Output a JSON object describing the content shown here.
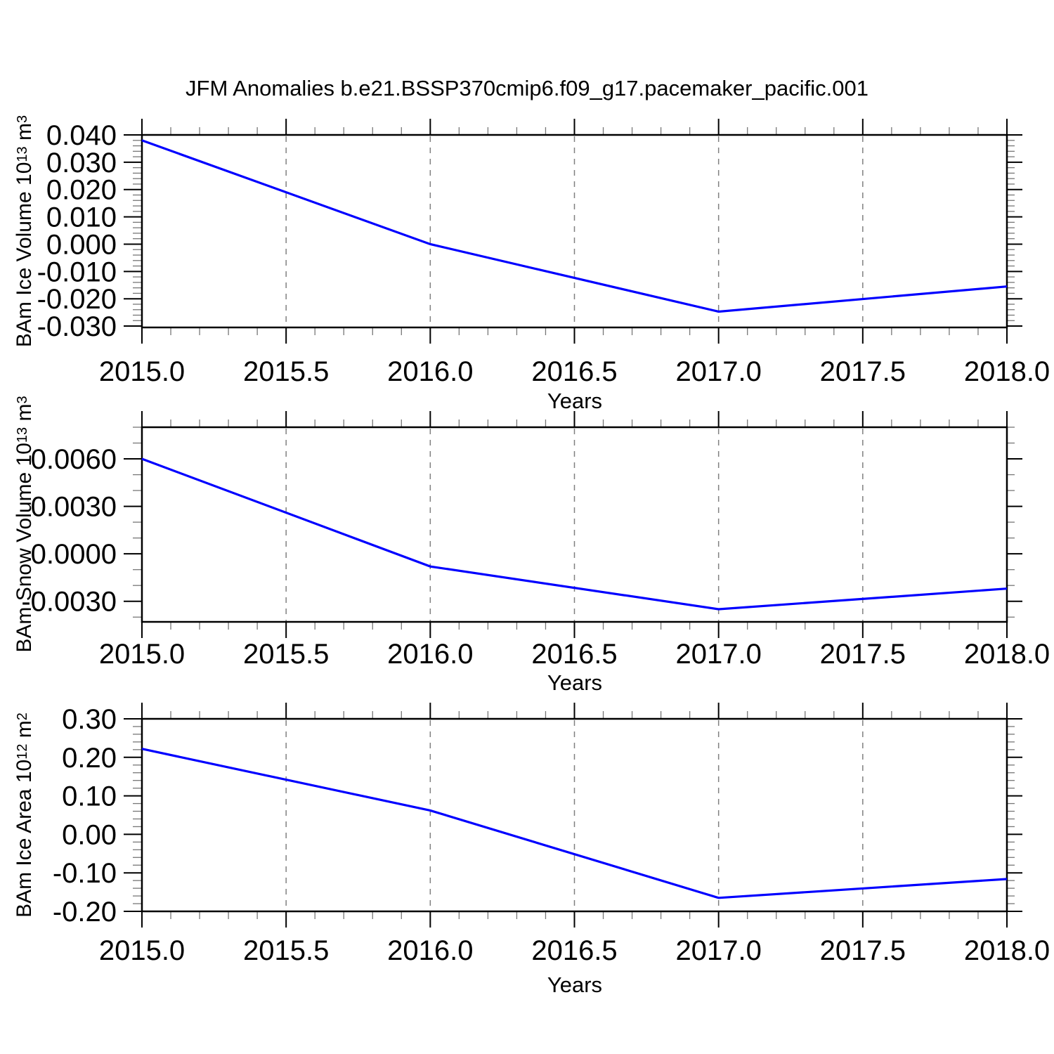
{
  "title": "JFM Anomalies b.e21.BSSP370cmip6.f09_g17.pacemaker_pacific.001",
  "colors": {
    "line": "#0000ff",
    "axis": "#000000",
    "major_tick": "#000000",
    "minor_tick": "#777777",
    "grid": "#808080",
    "background": "#ffffff"
  },
  "chart_data": [
    {
      "type": "line",
      "name": "ice-volume",
      "x": [
        2015.0,
        2016.0,
        2017.0,
        2018.0
      ],
      "values": [
        0.038,
        0.0,
        -0.0247,
        -0.0155
      ],
      "xlabel": "Years",
      "ylabel": {
        "pre": "BAm Ice Volume 10",
        "exp": "13",
        "unit": " m",
        "unit_exp": "3"
      },
      "xlim": [
        2015.0,
        2018.0
      ],
      "ylim": [
        -0.0305,
        0.04
      ],
      "xticks": [
        2015.0,
        2015.5,
        2016.0,
        2016.5,
        2017.0,
        2017.5,
        2018.0
      ],
      "xtick_labels": [
        "2015.0",
        "2015.5",
        "2016.0",
        "2016.5",
        "2017.0",
        "2017.5",
        "2018.0"
      ],
      "x_minor_step": 0.1,
      "yticks": [
        0.04,
        0.03,
        0.02,
        0.01,
        0.0,
        -0.01,
        -0.02,
        -0.03
      ],
      "ytick_labels": [
        "0.040",
        "0.030",
        "0.020",
        "0.010",
        "0.000",
        "-0.010",
        "-0.020",
        "-0.030"
      ],
      "y_major_step": 0.01,
      "y_minor_step": 0.002,
      "gridlines_x": [
        2015.5,
        2016.0,
        2016.5,
        2017.0,
        2017.5
      ],
      "grid_on": true,
      "legend": "none"
    },
    {
      "type": "line",
      "name": "snow-volume",
      "x": [
        2015.0,
        2016.0,
        2017.0,
        2018.0
      ],
      "values": [
        0.006,
        -0.0008,
        -0.0035,
        -0.0022
      ],
      "xlabel": "Years",
      "ylabel": {
        "pre": "BAm Snow Volume 10",
        "exp": "13",
        "unit": " m",
        "unit_exp": "3"
      },
      "xlim": [
        2015.0,
        2018.0
      ],
      "ylim": [
        -0.0043,
        0.008
      ],
      "xticks": [
        2015.0,
        2015.5,
        2016.0,
        2016.5,
        2017.0,
        2017.5,
        2018.0
      ],
      "xtick_labels": [
        "2015.0",
        "2015.5",
        "2016.0",
        "2016.5",
        "2017.0",
        "2017.5",
        "2018.0"
      ],
      "x_minor_step": 0.1,
      "yticks": [
        0.006,
        0.003,
        0.0,
        -0.003
      ],
      "ytick_labels": [
        "0.0060",
        "0.0030",
        "0.0000",
        "-0.0030"
      ],
      "y_major_step": 0.003,
      "y_minor_step": 0.001,
      "gridlines_x": [
        2015.5,
        2016.0,
        2016.5,
        2017.0,
        2017.5
      ],
      "grid_on": true,
      "legend": "none"
    },
    {
      "type": "line",
      "name": "ice-area",
      "x": [
        2015.0,
        2016.0,
        2017.0,
        2018.0
      ],
      "values": [
        0.222,
        0.062,
        -0.165,
        -0.116
      ],
      "xlabel": "Years",
      "ylabel": {
        "pre": "BAm Ice Area 10",
        "exp": "12",
        "unit": " m",
        "unit_exp": "2"
      },
      "xlim": [
        2015.0,
        2018.0
      ],
      "ylim": [
        -0.2,
        0.3
      ],
      "xticks": [
        2015.0,
        2015.5,
        2016.0,
        2016.5,
        2017.0,
        2017.5,
        2018.0
      ],
      "xtick_labels": [
        "2015.0",
        "2015.5",
        "2016.0",
        "2016.5",
        "2017.0",
        "2017.5",
        "2018.0"
      ],
      "x_minor_step": 0.1,
      "yticks": [
        0.3,
        0.2,
        0.1,
        0.0,
        -0.1,
        -0.2
      ],
      "ytick_labels": [
        "0.30",
        "0.20",
        "0.10",
        "0.00",
        "-0.10",
        "-0.20"
      ],
      "y_major_step": 0.1,
      "y_minor_step": 0.02,
      "gridlines_x": [
        2015.5,
        2016.0,
        2016.5,
        2017.0,
        2017.5
      ],
      "grid_on": true,
      "legend": "none"
    }
  ]
}
